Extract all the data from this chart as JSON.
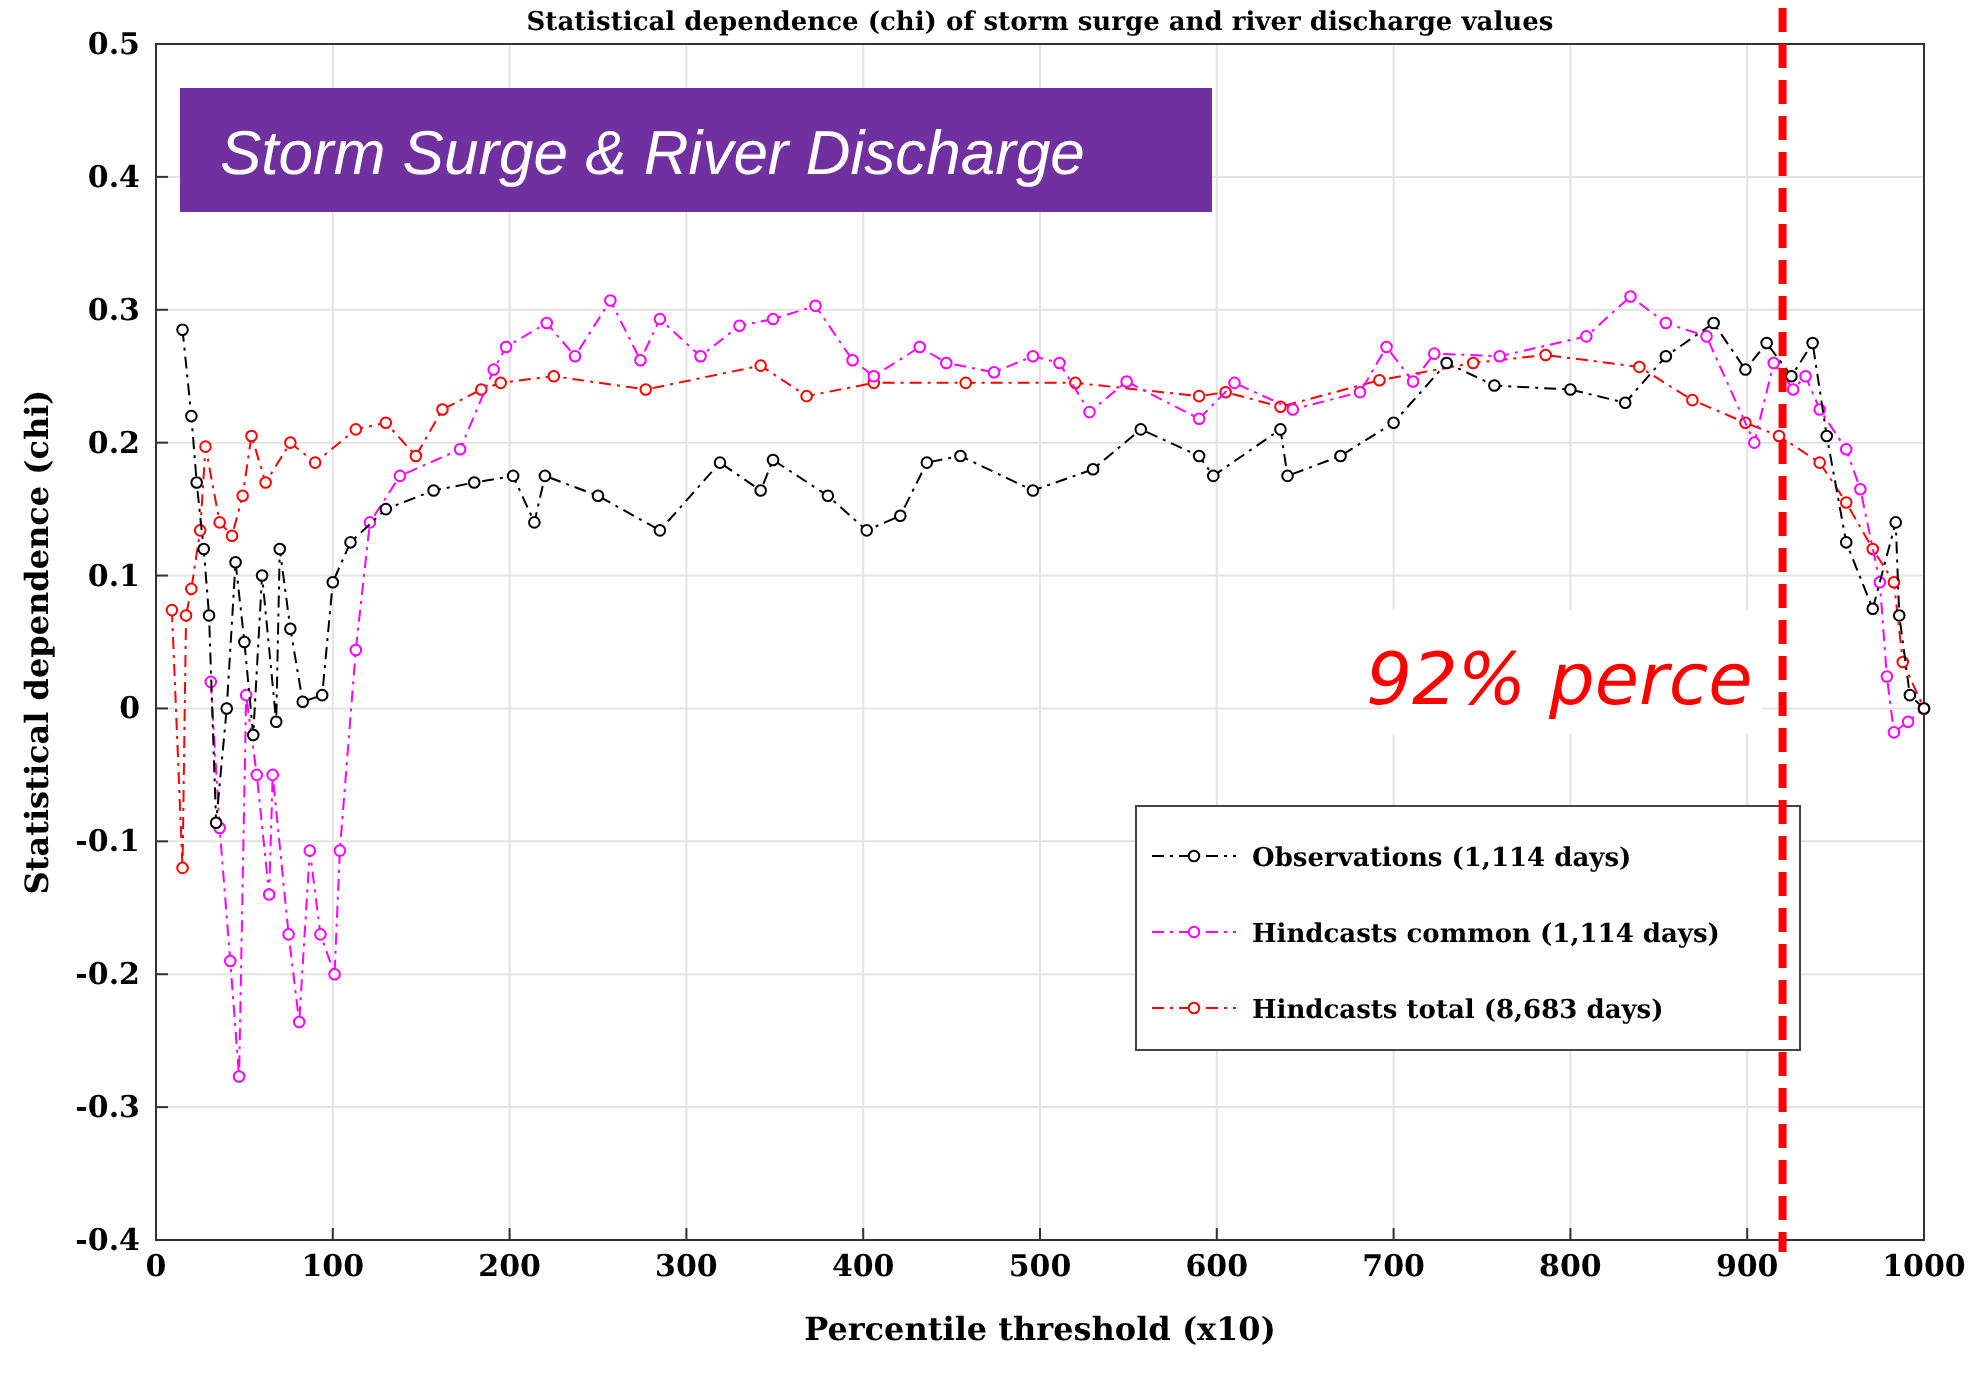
{
  "chart_data": {
    "type": "line",
    "title": "Statistical dependence (chi) of storm surge and river discharge values",
    "xlabel": "Percentile threshold (x10)",
    "ylabel": "Statistical dependence (chi)",
    "annotations": [
      "Storm Surge & River Discharge"
    ],
    "xlim": [
      0,
      1000
    ],
    "ylim": [
      -0.4,
      0.5
    ],
    "xticks": [
      0,
      100,
      200,
      300,
      400,
      500,
      600,
      700,
      800,
      900,
      1000
    ],
    "yticks": [
      -0.4,
      -0.3,
      -0.2,
      -0.1,
      0,
      0.1,
      0.2,
      0.3,
      0.4,
      0.5
    ],
    "grid": true,
    "legend": "right",
    "marker": "circle",
    "line_style": "dashed",
    "ref_lines": [
      {
        "axis": "x",
        "value": 920,
        "label": "92% perce",
        "color": "#ff0000",
        "line_style": "dashed"
      }
    ],
    "series": [
      {
        "name": "Observations (1,114 days)",
        "color": "#000000",
        "x": [
          15,
          20,
          23,
          27,
          30,
          34,
          40,
          45,
          50,
          55,
          60,
          68,
          70,
          76,
          83,
          94,
          100,
          110,
          130,
          157,
          180,
          202,
          214,
          220,
          250,
          285,
          319,
          342,
          349,
          380,
          402,
          421,
          436,
          455,
          496,
          530,
          557,
          590,
          598,
          636,
          640,
          670,
          700,
          730,
          757,
          800,
          831,
          854,
          881,
          899,
          911,
          925,
          937,
          945,
          956,
          971,
          984,
          986,
          992,
          1000
        ],
        "values": [
          0.285,
          0.22,
          0.17,
          0.12,
          0.07,
          -0.086,
          0.0,
          0.11,
          0.05,
          -0.02,
          0.1,
          -0.01,
          0.12,
          0.06,
          0.005,
          0.01,
          0.095,
          0.125,
          0.15,
          0.164,
          0.17,
          0.175,
          0.14,
          0.175,
          0.16,
          0.134,
          0.185,
          0.164,
          0.187,
          0.16,
          0.134,
          0.145,
          0.185,
          0.19,
          0.164,
          0.18,
          0.21,
          0.19,
          0.175,
          0.21,
          0.175,
          0.19,
          0.215,
          0.26,
          0.243,
          0.24,
          0.23,
          0.265,
          0.29,
          0.255,
          0.275,
          0.25,
          0.275,
          0.205,
          0.125,
          0.075,
          0.14,
          0.07,
          0.01,
          0
        ]
      },
      {
        "name": "Hindcasts common (1,114 days)",
        "color": "#ff00ff",
        "x": [
          31,
          36,
          42,
          47,
          51,
          57,
          64,
          66,
          75,
          81,
          87,
          93,
          101,
          104,
          113,
          121,
          138,
          172,
          191,
          198,
          221,
          237,
          257,
          274,
          285,
          308,
          330,
          349,
          373,
          394,
          406,
          432,
          447,
          474,
          496,
          511,
          528,
          549,
          590,
          610,
          643,
          681,
          696,
          711,
          723,
          760,
          809,
          834,
          854,
          877,
          904,
          915,
          926,
          933,
          941,
          956,
          964,
          975,
          979,
          983,
          991,
          1000
        ],
        "values": [
          0.02,
          -0.09,
          -0.19,
          -0.277,
          0.01,
          -0.05,
          -0.14,
          -0.05,
          -0.17,
          -0.236,
          -0.107,
          -0.17,
          -0.2,
          -0.107,
          0.044,
          0.14,
          0.175,
          0.195,
          0.255,
          0.272,
          0.29,
          0.265,
          0.307,
          0.262,
          0.293,
          0.265,
          0.288,
          0.293,
          0.303,
          0.262,
          0.25,
          0.272,
          0.26,
          0.253,
          0.265,
          0.26,
          0.223,
          0.246,
          0.218,
          0.245,
          0.225,
          0.238,
          0.272,
          0.246,
          0.267,
          0.265,
          0.28,
          0.31,
          0.29,
          0.28,
          0.2,
          0.26,
          0.24,
          0.25,
          0.225,
          0.195,
          0.165,
          0.095,
          0.024,
          -0.018,
          -0.01,
          0
        ]
      },
      {
        "name": "Hindcasts total (8,683 days)",
        "color": "#ff0000",
        "x": [
          9,
          15,
          17,
          20,
          25,
          28,
          36,
          43,
          49,
          54,
          62,
          76,
          90,
          113,
          130,
          147,
          162,
          184,
          195,
          225,
          277,
          342,
          368,
          406,
          458,
          520,
          590,
          605,
          636,
          692,
          745,
          786,
          839,
          869,
          899,
          918,
          941,
          956,
          971,
          983,
          988,
          1000
        ],
        "values": [
          0.074,
          -0.12,
          0.07,
          0.09,
          0.134,
          0.197,
          0.14,
          0.13,
          0.16,
          0.205,
          0.17,
          0.2,
          0.185,
          0.21,
          0.215,
          0.19,
          0.225,
          0.24,
          0.245,
          0.25,
          0.24,
          0.258,
          0.235,
          0.245,
          0.245,
          0.245,
          0.235,
          0.238,
          0.227,
          0.247,
          0.26,
          0.266,
          0.257,
          0.232,
          0.215,
          0.205,
          0.185,
          0.155,
          0.12,
          0.095,
          0.035,
          0
        ]
      }
    ]
  }
}
